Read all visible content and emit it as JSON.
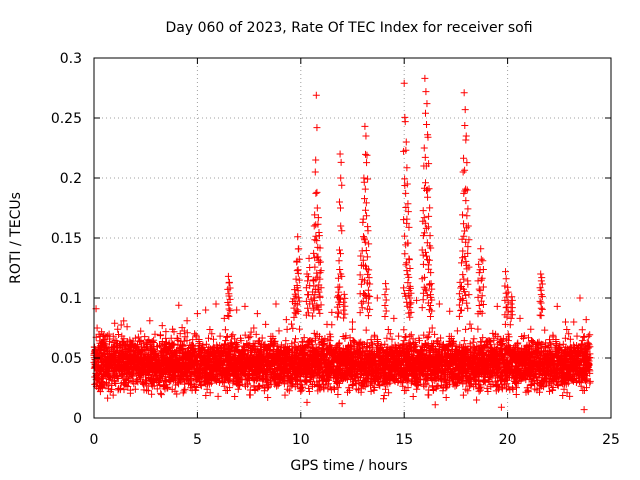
{
  "chart_data": {
    "type": "scatter",
    "title": "Day 060 of 2023, Rate Of TEC Index for receiver sofi",
    "xlabel": "GPS time / hours",
    "ylabel": "ROTI / TECUs",
    "xlim": [
      0,
      25
    ],
    "ylim": [
      0,
      0.3
    ],
    "xticks": [
      "0",
      "5",
      "10",
      "15",
      "20",
      "25"
    ],
    "yticks": [
      "0",
      "0.05",
      "0.1",
      "0.15",
      "0.2",
      "0.25",
      "0.3"
    ],
    "grid": true,
    "marker": "+",
    "color": "#ff0000",
    "series": [
      {
        "name": "ROTI",
        "points": [
          [
            0.1,
            0.091
          ],
          [
            0.15,
            0.075
          ],
          [
            0.3,
            0.068
          ],
          [
            0.6,
            0.058
          ],
          [
            1.0,
            0.079
          ],
          [
            1.6,
            0.076
          ],
          [
            2.2,
            0.064
          ],
          [
            2.7,
            0.081
          ],
          [
            3.3,
            0.077
          ],
          [
            3.8,
            0.074
          ],
          [
            4.1,
            0.094
          ],
          [
            4.5,
            0.081
          ],
          [
            5.0,
            0.087
          ],
          [
            5.4,
            0.09
          ],
          [
            5.9,
            0.095
          ],
          [
            6.3,
            0.083
          ],
          [
            6.5,
            0.118
          ],
          [
            6.55,
            0.113
          ],
          [
            6.9,
            0.09
          ],
          [
            7.3,
            0.093
          ],
          [
            7.9,
            0.087
          ],
          [
            8.3,
            0.078
          ],
          [
            8.8,
            0.095
          ],
          [
            9.3,
            0.082
          ],
          [
            9.6,
            0.097
          ],
          [
            9.7,
            0.107
          ],
          [
            9.8,
            0.13
          ],
          [
            9.85,
            0.151
          ],
          [
            9.9,
            0.141
          ],
          [
            10.3,
            0.12
          ],
          [
            10.4,
            0.133
          ],
          [
            10.5,
            0.099
          ],
          [
            10.6,
            0.115
          ],
          [
            10.65,
            0.16
          ],
          [
            10.7,
            0.205
          ],
          [
            10.75,
            0.269
          ],
          [
            10.8,
            0.175
          ],
          [
            10.85,
            0.167
          ],
          [
            10.9,
            0.152
          ],
          [
            10.95,
            0.13
          ],
          [
            11.5,
            0.088
          ],
          [
            11.8,
            0.109
          ],
          [
            11.85,
            0.131
          ],
          [
            11.9,
            0.22
          ],
          [
            11.95,
            0.213
          ],
          [
            12.1,
            0.103
          ],
          [
            12.5,
            0.08
          ],
          [
            12.9,
            0.135
          ],
          [
            13.0,
            0.163
          ],
          [
            13.05,
            0.2
          ],
          [
            13.1,
            0.243
          ],
          [
            13.15,
            0.235
          ],
          [
            13.2,
            0.219
          ],
          [
            13.25,
            0.156
          ],
          [
            13.3,
            0.117
          ],
          [
            13.7,
            0.1
          ],
          [
            14.1,
            0.112
          ],
          [
            14.5,
            0.083
          ],
          [
            15.0,
            0.279
          ],
          [
            15.05,
            0.247
          ],
          [
            15.1,
            0.23
          ],
          [
            15.15,
            0.195
          ],
          [
            15.2,
            0.172
          ],
          [
            15.25,
            0.132
          ],
          [
            15.3,
            0.108
          ],
          [
            15.6,
            0.098
          ],
          [
            15.9,
            0.164
          ],
          [
            15.95,
            0.21
          ],
          [
            16.0,
            0.283
          ],
          [
            16.05,
            0.272
          ],
          [
            16.1,
            0.262
          ],
          [
            16.15,
            0.234
          ],
          [
            16.2,
            0.191
          ],
          [
            16.25,
            0.152
          ],
          [
            16.3,
            0.112
          ],
          [
            16.7,
            0.095
          ],
          [
            17.2,
            0.089
          ],
          [
            17.7,
            0.113
          ],
          [
            17.8,
            0.149
          ],
          [
            17.85,
            0.205
          ],
          [
            17.9,
            0.271
          ],
          [
            17.95,
            0.257
          ],
          [
            18.0,
            0.235
          ],
          [
            18.05,
            0.19
          ],
          [
            18.1,
            0.16
          ],
          [
            18.6,
            0.128
          ],
          [
            18.7,
            0.141
          ],
          [
            18.8,
            0.131
          ],
          [
            19.5,
            0.093
          ],
          [
            19.9,
            0.122
          ],
          [
            20.0,
            0.109
          ],
          [
            20.2,
            0.101
          ],
          [
            20.6,
            0.083
          ],
          [
            21.6,
            0.12
          ],
          [
            21.65,
            0.117
          ],
          [
            22.4,
            0.093
          ],
          [
            22.8,
            0.08
          ],
          [
            23.2,
            0.08
          ],
          [
            23.5,
            0.1
          ],
          [
            23.8,
            0.082
          ],
          [
            23.9,
            0.049
          ],
          [
            0.5,
            0.028
          ],
          [
            2.0,
            0.024
          ],
          [
            4.0,
            0.02
          ],
          [
            6.0,
            0.018
          ],
          [
            8.0,
            0.026
          ],
          [
            10.3,
            0.013
          ],
          [
            12.0,
            0.012
          ],
          [
            14.0,
            0.016
          ],
          [
            16.5,
            0.011
          ],
          [
            18.5,
            0.015
          ],
          [
            19.7,
            0.009
          ],
          [
            21.0,
            0.022
          ],
          [
            23.0,
            0.018
          ],
          [
            23.7,
            0.007
          ]
        ]
      }
    ],
    "dense_band": {
      "description": "baseline scatter band",
      "points_per_hour": 240,
      "x_range": [
        0,
        24
      ],
      "y_low": 0.015,
      "y_high": 0.075,
      "y_median": 0.04
    }
  }
}
